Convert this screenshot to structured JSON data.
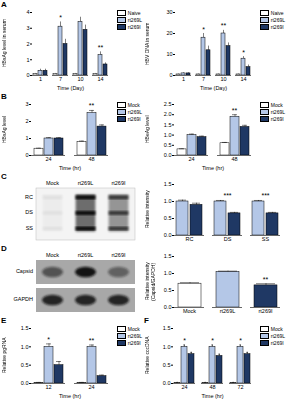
{
  "chart_data": [
    {
      "type": "bar",
      "title": "A",
      "ylabel": "HBsAg level in serum",
      "xlabel": "Time (Day)",
      "categories": [
        "1",
        "7",
        "10",
        "14"
      ],
      "series": [
        {
          "name": "Naive",
          "color": "#ffffff",
          "values": [
            0.1,
            0.1,
            0.1,
            0.1
          ],
          "errors": [
            0.03,
            0.03,
            0.03,
            0.03
          ]
        },
        {
          "name": "rt269L",
          "color": "#b4c7e7",
          "values": [
            0.3,
            3.1,
            3.4,
            1.3
          ],
          "errors": [
            0.1,
            0.3,
            0.3,
            0.2
          ]
        },
        {
          "name": "rt269I",
          "color": "#1f3864",
          "values": [
            0.3,
            2.0,
            2.9,
            0.7
          ],
          "errors": [
            0.1,
            0.3,
            0.3,
            0.1
          ]
        }
      ],
      "ylim": [
        0,
        4
      ],
      "yticks": [
        0,
        1,
        2,
        3,
        4
      ],
      "legend": "right",
      "annotations": [
        {
          "x": "7",
          "text": "*"
        },
        {
          "x": "14",
          "text": "**"
        }
      ]
    },
    {
      "type": "bar",
      "ylabel": "HBV DNA in serum",
      "xlabel": "Time (Day)",
      "categories": [
        "1",
        "7",
        "10",
        "14"
      ],
      "series": [
        {
          "name": "Naive",
          "color": "#ffffff",
          "values": [
            0.5,
            0.5,
            0.5,
            0.5
          ],
          "errors": [
            0.2,
            0.2,
            0.2,
            0.2
          ]
        },
        {
          "name": "rt269L",
          "color": "#b4c7e7",
          "values": [
            1,
            18,
            20,
            8
          ],
          "errors": [
            0.3,
            2,
            1.5,
            1
          ]
        },
        {
          "name": "rt269I",
          "color": "#1f3864",
          "values": [
            1,
            12,
            14,
            4
          ],
          "errors": [
            0.3,
            2,
            1.5,
            1
          ]
        }
      ],
      "ylim": [
        0,
        30
      ],
      "yticks": [
        0,
        10,
        20,
        30
      ],
      "legend": "right",
      "annotations": [
        {
          "x": "7",
          "text": "*"
        },
        {
          "x": "10",
          "text": "**"
        },
        {
          "x": "14",
          "text": "*"
        }
      ]
    },
    {
      "type": "bar",
      "title": "B",
      "ylabel": "HBsAg level",
      "xlabel": "Time (hr)",
      "categories": [
        "24",
        "48"
      ],
      "series": [
        {
          "name": "Mock",
          "color": "#ffffff",
          "values": [
            0.4,
            0.8
          ],
          "errors": [
            0.03,
            0.05
          ]
        },
        {
          "name": "rt269L",
          "color": "#b4c7e7",
          "values": [
            1.0,
            2.5
          ],
          "errors": [
            0.05,
            0.15
          ]
        },
        {
          "name": "rt269I",
          "color": "#1f3864",
          "values": [
            1.0,
            1.7
          ],
          "errors": [
            0.05,
            0.1
          ]
        }
      ],
      "ylim": [
        0,
        3
      ],
      "yticks": [
        0,
        1,
        2,
        3
      ],
      "legend": "right",
      "annotations": [
        {
          "x": "48",
          "text": "**"
        }
      ]
    },
    {
      "type": "bar",
      "ylabel": "HBeAg level",
      "xlabel": "Time (hr)",
      "categories": [
        "24",
        "48"
      ],
      "series": [
        {
          "name": "Mock",
          "color": "#ffffff",
          "values": [
            0.3,
            0.6
          ],
          "errors": [
            0.03,
            0.04
          ]
        },
        {
          "name": "rt269L",
          "color": "#b4c7e7",
          "values": [
            1.0,
            1.9
          ],
          "errors": [
            0.05,
            0.1
          ]
        },
        {
          "name": "rt269I",
          "color": "#1f3864",
          "values": [
            0.9,
            1.4
          ],
          "errors": [
            0.05,
            0.08
          ]
        }
      ],
      "ylim": [
        0,
        2.5
      ],
      "yticks": [
        {
          "value": 0,
          "label": "0.0"
        },
        {
          "value": 0.5,
          "label": "0.5"
        },
        {
          "value": 1,
          "label": "1.0"
        },
        {
          "value": 1.5,
          "label": "1.5"
        },
        {
          "value": 2,
          "label": "2.0"
        },
        {
          "value": 2.5,
          "label": "2.5"
        }
      ],
      "legend": "right",
      "annotations": [
        {
          "x": "48",
          "text": "**"
        }
      ]
    },
    {
      "type": "bar",
      "ylabel": "Relative intensity",
      "categories": [
        "RC",
        "DS",
        "SS"
      ],
      "series": [
        {
          "name": "rt269L",
          "color": "#b4c7e7",
          "values": [
            1.0,
            1.0,
            1.0
          ],
          "errors": [
            0.04,
            0.03,
            0.03
          ]
        },
        {
          "name": "rt269I",
          "color": "#1f3864",
          "values": [
            0.9,
            0.65,
            0.65
          ],
          "errors": [
            0.05,
            0.03,
            0.03
          ]
        }
      ],
      "ylim": [
        0,
        1.5
      ],
      "yticks": [
        {
          "value": 0,
          "label": "0.0"
        },
        {
          "value": 0.5,
          "label": "0.5"
        },
        {
          "value": 1,
          "label": "1.0"
        },
        {
          "value": 1.5,
          "label": "1.5"
        }
      ],
      "annotations": [
        {
          "x": "DS",
          "text": "***"
        },
        {
          "x": "SS",
          "text": "***"
        }
      ]
    },
    {
      "type": "bar",
      "ylabel": "Relative intensity (Capsid/GAPDH)",
      "categories": [
        "Mock",
        "rt269L",
        "rt269I"
      ],
      "values": [
        0.7,
        1.05,
        0.65
      ],
      "errors": [
        0.03,
        0.02,
        0.05
      ],
      "colors": [
        "#ffffff",
        "#b4c7e7",
        "#1f3864"
      ],
      "ylim": [
        0,
        1.5
      ],
      "yticks": [
        {
          "value": 0,
          "label": "0.0"
        },
        {
          "value": 0.5,
          "label": "0.5"
        },
        {
          "value": 1,
          "label": "1.0"
        },
        {
          "value": 1.5,
          "label": "1.5"
        }
      ],
      "annotations": [
        {
          "x": "rt269I",
          "text": "**"
        }
      ]
    },
    {
      "type": "bar",
      "title": "E",
      "ylabel": "Relative pgRNA",
      "xlabel": "Time (hr)",
      "categories": [
        "12",
        "24"
      ],
      "series": [
        {
          "name": "Mock",
          "color": "#ffffff",
          "values": [
            0.02,
            0.02
          ],
          "errors": [
            0.01,
            0.01
          ]
        },
        {
          "name": "rt269L",
          "color": "#b4c7e7",
          "values": [
            1.0,
            1.0
          ],
          "errors": [
            0.08,
            0.05
          ]
        },
        {
          "name": "rt269I",
          "color": "#1f3864",
          "values": [
            0.5,
            0.2
          ],
          "errors": [
            0.1,
            0.03
          ]
        }
      ],
      "ylim": [
        0,
        1.5
      ],
      "yticks": [
        {
          "value": 0,
          "label": "0.0"
        },
        {
          "value": 0.5,
          "label": "0.5"
        },
        {
          "value": 1,
          "label": "1.0"
        },
        {
          "value": 1.5,
          "label": "1.5"
        }
      ],
      "legend": "right",
      "annotations": [
        {
          "x": "12",
          "text": "*"
        },
        {
          "x": "24",
          "text": "**"
        }
      ]
    },
    {
      "type": "bar",
      "title": "F",
      "ylabel": "Relative cccDNA",
      "xlabel": "Time (hr)",
      "categories": [
        "24",
        "48",
        "72"
      ],
      "series": [
        {
          "name": "Mock",
          "color": "#ffffff",
          "values": [
            0.02,
            0.02,
            0.02
          ],
          "errors": [
            0.01,
            0.01,
            0.01
          ]
        },
        {
          "name": "rt269L",
          "color": "#b4c7e7",
          "values": [
            1.0,
            1.0,
            1.0
          ],
          "errors": [
            0.05,
            0.05,
            0.05
          ]
        },
        {
          "name": "rt269I",
          "color": "#1f3864",
          "values": [
            0.8,
            0.75,
            0.8
          ],
          "errors": [
            0.05,
            0.05,
            0.05
          ]
        }
      ],
      "ylim": [
        0,
        1.5
      ],
      "yticks": [
        {
          "value": 0,
          "label": "0.0"
        },
        {
          "value": 0.5,
          "label": "0.5"
        },
        {
          "value": 1,
          "label": "1.0"
        },
        {
          "value": 1.5,
          "label": "1.5"
        }
      ],
      "legend": "right",
      "annotations": [
        {
          "x": "24",
          "text": "*"
        },
        {
          "x": "48",
          "text": "*"
        },
        {
          "x": "72",
          "text": "*"
        }
      ]
    }
  ],
  "blots": [
    {
      "title": "C",
      "lanes": [
        "Mock",
        "rt269L",
        "rt269I"
      ],
      "bands": [
        "RC",
        "DS",
        "SS"
      ]
    },
    {
      "title": "D",
      "lanes": [
        "Mock",
        "rt269L",
        "rt269I"
      ],
      "rows": [
        "Capsid",
        "GAPDH"
      ]
    }
  ]
}
